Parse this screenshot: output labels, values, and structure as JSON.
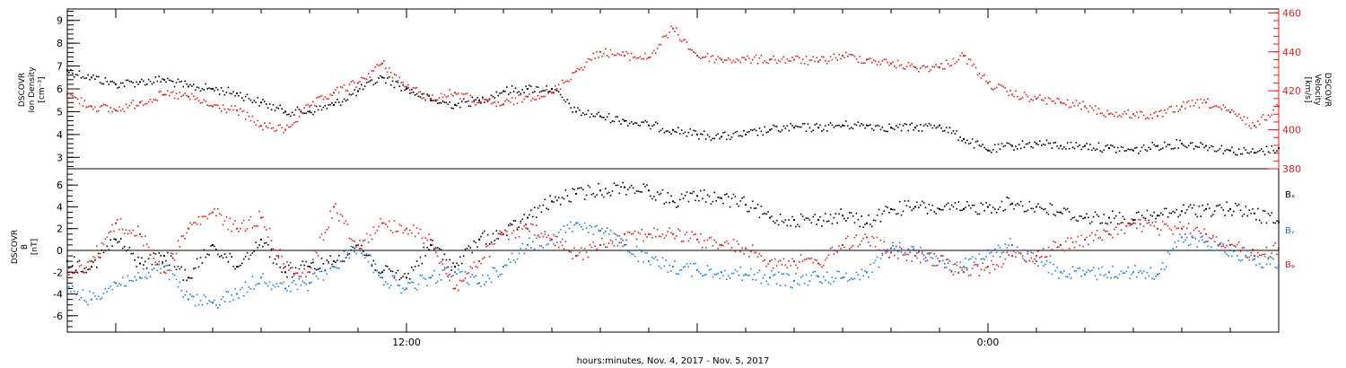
{
  "colors": {
    "black": "#000000",
    "red": "#e01f1f",
    "blue": "#1b7fd6"
  },
  "xaxis": {
    "label": "hours:minutes, Nov.  4, 2017 - Nov.  5, 2017"
  },
  "chart_data": [
    {
      "type": "scatter",
      "panel": "top",
      "left_axis": {
        "label_lines": [
          "DSCOVR",
          "Ion Density",
          "[cm⁻³]"
        ],
        "ylim": [
          2.5,
          9.5
        ],
        "ticks": [
          3,
          4,
          5,
          6,
          7,
          8,
          9
        ],
        "tick_labels": [
          "3",
          "4",
          "5",
          "6",
          "7",
          "8",
          "9"
        ]
      },
      "right_axis": {
        "label_lines": [
          "DSCOVR",
          "Velocity",
          "[km/s]"
        ],
        "ylim": [
          380,
          462
        ],
        "ticks": [
          380,
          400,
          420,
          440,
          460
        ],
        "tick_labels": [
          "380",
          "400",
          "420",
          "440",
          "460"
        ]
      },
      "xlim": [
        5.0,
        30.0
      ],
      "x_ticks": [
        12,
        24
      ],
      "x_tick_labels": [
        "12:00",
        "0:00"
      ],
      "series": [
        {
          "axis": "left",
          "color": "#000000",
          "x": [
            5.0,
            5.5,
            6.0,
            6.5,
            7.0,
            7.5,
            8.0,
            8.5,
            9.0,
            9.5,
            10.0,
            10.5,
            11.0,
            11.5,
            12.0,
            12.5,
            13.0,
            13.5,
            14.0,
            14.5,
            15.0,
            15.5,
            16.0,
            16.5,
            17.0,
            17.5,
            18.0,
            18.5,
            19.0,
            19.5,
            20.0,
            20.5,
            21.0,
            21.5,
            22.0,
            22.5,
            23.0,
            23.5,
            24.0,
            24.5,
            25.0,
            25.5,
            26.0,
            26.5,
            27.0,
            27.5,
            28.0,
            28.5,
            29.0,
            29.5,
            30.0
          ],
          "y": [
            6.8,
            6.5,
            6.2,
            6.3,
            6.4,
            6.1,
            6.0,
            5.8,
            5.4,
            5.0,
            5.0,
            5.3,
            5.9,
            6.5,
            6.0,
            5.5,
            5.3,
            5.5,
            5.9,
            6.0,
            6.0,
            5.0,
            4.8,
            4.6,
            4.4,
            4.2,
            4.0,
            3.9,
            4.0,
            4.2,
            4.3,
            4.3,
            4.4,
            4.4,
            4.3,
            4.3,
            4.4,
            3.8,
            3.3,
            3.5,
            3.6,
            3.5,
            3.5,
            3.4,
            3.3,
            3.5,
            3.6,
            3.5,
            3.3,
            3.2,
            3.4
          ]
        },
        {
          "axis": "right",
          "color": "#e01f1f",
          "x": [
            5.0,
            5.5,
            6.0,
            6.5,
            7.0,
            7.5,
            8.0,
            8.5,
            9.0,
            9.5,
            10.0,
            10.5,
            11.0,
            11.5,
            12.0,
            12.5,
            13.0,
            13.5,
            14.0,
            14.5,
            15.0,
            15.5,
            16.0,
            16.5,
            17.0,
            17.5,
            18.0,
            18.5,
            19.0,
            19.5,
            20.0,
            20.5,
            21.0,
            21.5,
            22.0,
            22.5,
            23.0,
            23.5,
            24.0,
            24.5,
            25.0,
            25.5,
            26.0,
            26.5,
            27.0,
            27.5,
            28.0,
            28.5,
            29.0,
            29.5,
            30.0
          ],
          "y": [
            418,
            412,
            410,
            414,
            418,
            417,
            412,
            410,
            402,
            400,
            412,
            419,
            424,
            434,
            422,
            416,
            419,
            414,
            413,
            417,
            419,
            430,
            440,
            438,
            437,
            452,
            438,
            436,
            436,
            436,
            436,
            435,
            438,
            436,
            434,
            432,
            432,
            438,
            424,
            418,
            416,
            414,
            412,
            408,
            408,
            407,
            412,
            414,
            409,
            402,
            412
          ]
        }
      ]
    },
    {
      "type": "scatter",
      "panel": "bottom",
      "left_axis": {
        "label_lines": [
          "DSCOVR",
          "B",
          "[nT]"
        ],
        "ylim": [
          -7.5,
          7.5
        ],
        "ticks": [
          -6,
          -4,
          -2,
          0,
          2,
          4,
          6
        ],
        "tick_labels": [
          "-6",
          "-4",
          "-2",
          "0",
          "2",
          "4",
          "6"
        ]
      },
      "xlim": [
        5.0,
        30.0
      ],
      "x_ticks": [
        12,
        24
      ],
      "x_tick_labels": [
        "12:00",
        "0:00"
      ],
      "legend": "right",
      "series": [
        {
          "name": "Bₓ",
          "color": "#000000",
          "x": [
            5.0,
            5.5,
            6.0,
            6.5,
            7.0,
            7.5,
            8.0,
            8.5,
            9.0,
            9.5,
            10.0,
            10.5,
            11.0,
            11.5,
            12.0,
            12.5,
            13.0,
            13.5,
            14.0,
            14.5,
            15.0,
            15.5,
            16.0,
            16.5,
            17.0,
            17.5,
            18.0,
            18.5,
            19.0,
            19.5,
            20.0,
            20.5,
            21.0,
            21.5,
            22.0,
            22.5,
            23.0,
            23.5,
            24.0,
            24.5,
            25.0,
            25.5,
            26.0,
            26.5,
            27.0,
            27.5,
            28.0,
            28.5,
            29.0,
            29.5,
            30.0
          ],
          "y": [
            -1.0,
            -1.5,
            1.0,
            -1.2,
            -0.5,
            -2.5,
            0.5,
            -1.5,
            1.0,
            -2.0,
            -1.5,
            -1.0,
            0.5,
            -2.0,
            -2.5,
            0.5,
            -1.5,
            1.0,
            1.5,
            3.0,
            4.5,
            5.2,
            5.5,
            5.8,
            5.5,
            4.5,
            5.0,
            4.8,
            4.2,
            3.0,
            2.8,
            2.8,
            3.2,
            2.5,
            3.8,
            4.0,
            3.8,
            3.8,
            4.0,
            4.3,
            4.0,
            3.5,
            3.0,
            3.0,
            2.8,
            3.2,
            3.6,
            3.8,
            3.8,
            3.4,
            2.6
          ]
        },
        {
          "name": "Bᵧ",
          "color": "#1b7fd6",
          "x": [
            5.0,
            5.5,
            6.0,
            6.5,
            7.0,
            7.5,
            8.0,
            8.5,
            9.0,
            9.5,
            10.0,
            10.5,
            11.0,
            11.5,
            12.0,
            12.5,
            13.0,
            13.5,
            14.0,
            14.5,
            15.0,
            15.5,
            16.0,
            16.5,
            17.0,
            17.5,
            18.0,
            18.5,
            19.0,
            19.5,
            20.0,
            20.5,
            21.0,
            21.5,
            22.0,
            22.5,
            23.0,
            23.5,
            24.0,
            24.5,
            25.0,
            25.5,
            26.0,
            26.5,
            27.0,
            27.5,
            28.0,
            28.5,
            29.0,
            29.5,
            30.0
          ],
          "y": [
            -3.5,
            -4.5,
            -3.0,
            -2.5,
            -1.5,
            -4.5,
            -4.8,
            -4.0,
            -2.5,
            -3.5,
            -3.0,
            -1.5,
            0.5,
            -2.5,
            -3.5,
            -2.5,
            -2.0,
            -3.0,
            -1.5,
            0.5,
            1.0,
            2.5,
            1.8,
            0.5,
            -1.0,
            -1.5,
            -1.8,
            -2.0,
            -2.2,
            -2.5,
            -2.8,
            -2.4,
            -2.5,
            -2.0,
            0.2,
            0.0,
            -1.0,
            -1.5,
            0.0,
            0.5,
            -1.0,
            -2.0,
            -2.2,
            -2.0,
            -2.0,
            -2.2,
            1.2,
            0.8,
            0.0,
            -0.8,
            -1.4
          ]
        },
        {
          "name": "Bᵩ",
          "color": "#e01f1f",
          "x": [
            5.0,
            5.5,
            6.0,
            6.5,
            7.0,
            7.5,
            8.0,
            8.5,
            9.0,
            9.5,
            10.0,
            10.5,
            11.0,
            11.5,
            12.0,
            12.5,
            13.0,
            13.5,
            14.0,
            14.5,
            15.0,
            15.5,
            16.0,
            16.5,
            17.0,
            17.5,
            18.0,
            18.5,
            19.0,
            19.5,
            20.0,
            20.5,
            21.0,
            21.5,
            22.0,
            22.5,
            23.0,
            23.5,
            24.0,
            24.5,
            25.0,
            25.5,
            26.0,
            26.5,
            27.0,
            27.5,
            28.0,
            28.5,
            29.0,
            29.5,
            30.0
          ],
          "y": [
            -2.5,
            -1.0,
            2.5,
            1.5,
            -2.0,
            2.0,
            3.5,
            2.0,
            3.0,
            -1.5,
            -2.0,
            4.0,
            0.5,
            2.5,
            2.0,
            1.0,
            -3.5,
            -1.0,
            1.5,
            2.0,
            1.0,
            -0.5,
            0.5,
            1.5,
            1.5,
            1.5,
            1.0,
            0.5,
            0.2,
            -1.0,
            -1.0,
            -1.2,
            0.5,
            1.2,
            -0.2,
            -0.5,
            -1.0,
            -2.0,
            -1.5,
            -0.5,
            -0.5,
            0.5,
            1.0,
            1.5,
            2.5,
            2.0,
            2.0,
            1.5,
            0.5,
            -0.5,
            0.2
          ]
        }
      ]
    }
  ]
}
